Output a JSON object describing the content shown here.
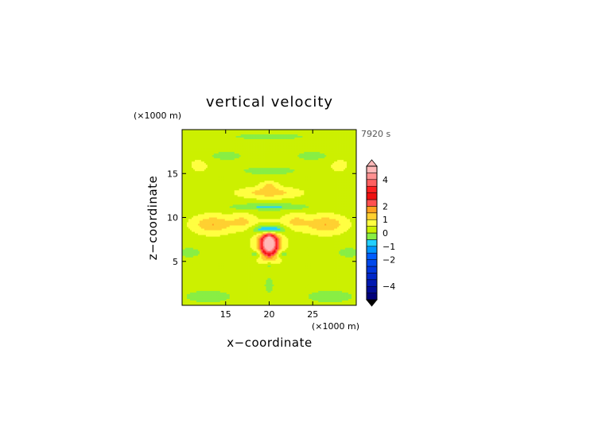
{
  "chart_data": {
    "type": "heatmap",
    "title": "vertical velocity",
    "xlabel": "x−coordinate",
    "ylabel": "z−coordinate",
    "x_unit": "(×1000 m)",
    "y_unit": "(×1000 m)",
    "time_label": "7920 s",
    "xlim": [
      10,
      30
    ],
    "ylim": [
      0,
      20
    ],
    "x_ticks": [
      15,
      20,
      25
    ],
    "y_ticks": [
      5,
      10,
      15
    ],
    "colorbar": {
      "range": [
        -5,
        5
      ],
      "tick_values": [
        4,
        2,
        1,
        0,
        -1,
        -2,
        -4
      ],
      "tick_labels": [
        "4",
        "2",
        "1",
        "0",
        "−1",
        "−2",
        "−4"
      ],
      "extend": "both"
    },
    "colormap": [
      {
        "min": -5.0,
        "max": -4.5,
        "color": "#00007a"
      },
      {
        "min": -4.5,
        "max": -4.0,
        "color": "#000c96"
      },
      {
        "min": -4.0,
        "max": -3.5,
        "color": "#0018b0"
      },
      {
        "min": -3.5,
        "max": -3.0,
        "color": "#0026c8"
      },
      {
        "min": -3.0,
        "max": -2.5,
        "color": "#0036dc"
      },
      {
        "min": -2.5,
        "max": -2.0,
        "color": "#0048ec"
      },
      {
        "min": -2.0,
        "max": -1.5,
        "color": "#005cff"
      },
      {
        "min": -1.5,
        "max": -1.0,
        "color": "#0096ff"
      },
      {
        "min": -1.0,
        "max": -0.5,
        "color": "#22d0ff"
      },
      {
        "min": -0.5,
        "max": 0.0,
        "color": "#88ee44"
      },
      {
        "min": 0.0,
        "max": 0.5,
        "color": "#ccf000"
      },
      {
        "min": 0.5,
        "max": 1.0,
        "color": "#ffff40"
      },
      {
        "min": 1.0,
        "max": 1.5,
        "color": "#ffd030"
      },
      {
        "min": 1.5,
        "max": 2.0,
        "color": "#ffa020"
      },
      {
        "min": 2.0,
        "max": 2.5,
        "color": "#ff5050"
      },
      {
        "min": 2.5,
        "max": 3.0,
        "color": "#ee1010"
      },
      {
        "min": 3.0,
        "max": 3.5,
        "color": "#ff2020"
      },
      {
        "min": 3.5,
        "max": 4.0,
        "color": "#ff6060"
      },
      {
        "min": 4.0,
        "max": 4.5,
        "color": "#ff9090"
      },
      {
        "min": 4.5,
        "max": 5.0,
        "color": "#ffb8b8"
      }
    ],
    "features": [
      {
        "name": "updraft-core",
        "x": 20.0,
        "z": 7.0,
        "peak_value": 4.5
      },
      {
        "name": "downdraft-ring",
        "x": 20.0,
        "z": 8.5,
        "peak_value": -1.5
      },
      {
        "name": "left-lobe",
        "x": 13.5,
        "z": 9.2,
        "peak_value": 1.5
      },
      {
        "name": "right-lobe",
        "x": 26.5,
        "z": 9.2,
        "peak_value": 1.5
      },
      {
        "name": "upper-band",
        "x": 20.0,
        "z": 12.8,
        "peak_value": 1.3
      },
      {
        "name": "lower-downdraft",
        "x": 20.0,
        "z": 2.5,
        "peak_value": -0.8
      }
    ]
  }
}
